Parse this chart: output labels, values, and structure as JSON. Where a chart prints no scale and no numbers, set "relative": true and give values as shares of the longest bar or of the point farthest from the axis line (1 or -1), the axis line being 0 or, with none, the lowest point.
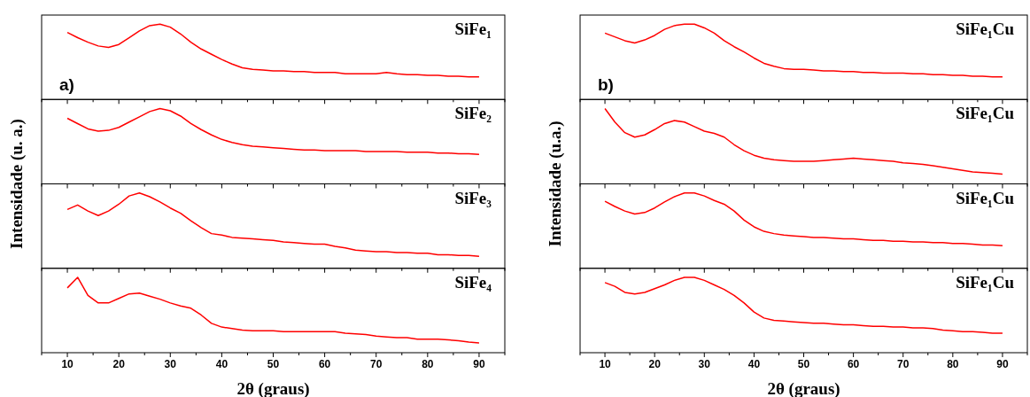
{
  "chart_data": [
    {
      "type": "line",
      "relative": true,
      "title": "SiFe₁",
      "ylabel": "Intensidade (u. a.)",
      "annotations": [
        "a)"
      ],
      "tick_labels": false,
      "xlim": [
        5,
        95
      ],
      "xticks": [
        {
          "value": 5,
          "label": null
        },
        10,
        {
          "value": 15,
          "label": null
        },
        20,
        {
          "value": 25,
          "label": null
        },
        30,
        {
          "value": 35,
          "label": null
        },
        40,
        {
          "value": 45,
          "label": null
        },
        50,
        {
          "value": 55,
          "label": null
        },
        60,
        {
          "value": 65,
          "label": null
        },
        70,
        {
          "value": 75,
          "label": null
        },
        80,
        {
          "value": 85,
          "label": null
        },
        90,
        {
          "value": 95,
          "label": null
        }
      ],
      "color": "#ff0000",
      "x": [
        10,
        12,
        14,
        16,
        18,
        20,
        22,
        24,
        26,
        28,
        30,
        32,
        34,
        36,
        38,
        40,
        42,
        44,
        46,
        48,
        50,
        52,
        54,
        56,
        58,
        60,
        62,
        64,
        66,
        68,
        70,
        72,
        74,
        76,
        78,
        80,
        82,
        84,
        86,
        88,
        90
      ],
      "values": [
        0.89,
        0.82,
        0.76,
        0.71,
        0.69,
        0.73,
        0.82,
        0.91,
        0.98,
        1,
        0.96,
        0.87,
        0.76,
        0.67,
        0.6,
        0.53,
        0.47,
        0.42,
        0.4,
        0.39,
        0.38,
        0.38,
        0.37,
        0.37,
        0.36,
        0.36,
        0.36,
        0.34,
        0.34,
        0.34,
        0.34,
        0.36,
        0.34,
        0.33,
        0.33,
        0.32,
        0.32,
        0.31,
        0.31,
        0.3,
        0.3
      ]
    },
    {
      "type": "line",
      "relative": true,
      "title": "SiFe₂",
      "tick_labels": false,
      "xlim": [
        5,
        95
      ],
      "xticks": [
        {
          "value": 5,
          "label": null
        },
        10,
        {
          "value": 15,
          "label": null
        },
        20,
        {
          "value": 25,
          "label": null
        },
        30,
        {
          "value": 35,
          "label": null
        },
        40,
        {
          "value": 45,
          "label": null
        },
        50,
        {
          "value": 55,
          "label": null
        },
        60,
        {
          "value": 65,
          "label": null
        },
        70,
        {
          "value": 75,
          "label": null
        },
        80,
        {
          "value": 85,
          "label": null
        },
        90,
        {
          "value": 95,
          "label": null
        }
      ],
      "color": "#ff0000",
      "x": [
        10,
        12,
        14,
        16,
        18,
        20,
        22,
        24,
        26,
        28,
        30,
        32,
        34,
        36,
        38,
        40,
        42,
        44,
        46,
        48,
        50,
        52,
        54,
        56,
        58,
        60,
        62,
        64,
        66,
        68,
        70,
        72,
        74,
        76,
        78,
        80,
        82,
        84,
        86,
        88,
        90
      ],
      "values": [
        0.87,
        0.8,
        0.73,
        0.7,
        0.71,
        0.75,
        0.82,
        0.89,
        0.96,
        1,
        0.97,
        0.9,
        0.8,
        0.72,
        0.65,
        0.59,
        0.55,
        0.52,
        0.5,
        0.49,
        0.48,
        0.47,
        0.46,
        0.45,
        0.45,
        0.44,
        0.44,
        0.44,
        0.44,
        0.43,
        0.43,
        0.43,
        0.43,
        0.42,
        0.42,
        0.42,
        0.41,
        0.41,
        0.4,
        0.4,
        0.39
      ]
    },
    {
      "type": "line",
      "relative": true,
      "title": "SiFe₃",
      "tick_labels": false,
      "xlim": [
        5,
        95
      ],
      "xticks": [
        {
          "value": 5,
          "label": null
        },
        10,
        {
          "value": 15,
          "label": null
        },
        20,
        {
          "value": 25,
          "label": null
        },
        30,
        {
          "value": 35,
          "label": null
        },
        40,
        {
          "value": 45,
          "label": null
        },
        50,
        {
          "value": 55,
          "label": null
        },
        60,
        {
          "value": 65,
          "label": null
        },
        70,
        {
          "value": 75,
          "label": null
        },
        80,
        {
          "value": 85,
          "label": null
        },
        90,
        {
          "value": 95,
          "label": null
        }
      ],
      "color": "#ff0000",
      "x": [
        10,
        12,
        14,
        16,
        18,
        20,
        22,
        24,
        26,
        28,
        30,
        32,
        34,
        36,
        38,
        40,
        42,
        44,
        46,
        48,
        50,
        52,
        54,
        56,
        58,
        60,
        62,
        64,
        66,
        68,
        70,
        72,
        74,
        76,
        78,
        80,
        82,
        84,
        86,
        88,
        90
      ],
      "values": [
        0.78,
        0.84,
        0.76,
        0.7,
        0.76,
        0.85,
        0.96,
        1,
        0.95,
        0.88,
        0.8,
        0.73,
        0.63,
        0.54,
        0.46,
        0.44,
        0.41,
        0.4,
        0.39,
        0.38,
        0.37,
        0.35,
        0.34,
        0.33,
        0.32,
        0.32,
        0.29,
        0.27,
        0.24,
        0.23,
        0.22,
        0.22,
        0.21,
        0.21,
        0.2,
        0.2,
        0.18,
        0.18,
        0.17,
        0.17,
        0.16
      ]
    },
    {
      "type": "line",
      "relative": true,
      "title": "SiFe₄",
      "xlabel": "2θ (graus)",
      "tick_labels": "x",
      "xlim": [
        5,
        95
      ],
      "xticks": [
        {
          "value": 5,
          "label": null
        },
        10,
        {
          "value": 15,
          "label": null
        },
        20,
        {
          "value": 25,
          "label": null
        },
        30,
        {
          "value": 35,
          "label": null
        },
        40,
        {
          "value": 45,
          "label": null
        },
        50,
        {
          "value": 55,
          "label": null
        },
        60,
        {
          "value": 65,
          "label": null
        },
        70,
        {
          "value": 75,
          "label": null
        },
        80,
        {
          "value": 85,
          "label": null
        },
        90,
        {
          "value": 95,
          "label": null
        }
      ],
      "color": "#ff0000",
      "x": [
        10,
        12,
        14,
        16,
        18,
        20,
        22,
        24,
        26,
        28,
        30,
        32,
        34,
        36,
        38,
        40,
        42,
        44,
        46,
        48,
        50,
        52,
        54,
        56,
        58,
        60,
        62,
        64,
        66,
        68,
        70,
        72,
        74,
        76,
        78,
        80,
        82,
        84,
        86,
        88,
        90
      ],
      "values": [
        0.86,
        1,
        0.76,
        0.66,
        0.66,
        0.72,
        0.78,
        0.79,
        0.75,
        0.71,
        0.66,
        0.62,
        0.59,
        0.5,
        0.39,
        0.34,
        0.32,
        0.3,
        0.29,
        0.29,
        0.29,
        0.28,
        0.28,
        0.28,
        0.28,
        0.28,
        0.28,
        0.26,
        0.25,
        0.24,
        0.22,
        0.21,
        0.2,
        0.2,
        0.18,
        0.18,
        0.18,
        0.17,
        0.16,
        0.14,
        0.13
      ]
    },
    {
      "type": "line",
      "relative": true,
      "title": "SiFe₁Cu",
      "ylabel": "Intensidade (u.a.)",
      "annotations": [
        "b)"
      ],
      "tick_labels": false,
      "xlim": [
        5,
        95
      ],
      "xticks": [
        {
          "value": 5,
          "label": null
        },
        10,
        {
          "value": 15,
          "label": null
        },
        20,
        {
          "value": 25,
          "label": null
        },
        30,
        {
          "value": 35,
          "label": null
        },
        40,
        {
          "value": 45,
          "label": null
        },
        50,
        {
          "value": 55,
          "label": null
        },
        60,
        {
          "value": 65,
          "label": null
        },
        70,
        {
          "value": 75,
          "label": null
        },
        80,
        {
          "value": 85,
          "label": null
        },
        90,
        {
          "value": 95,
          "label": null
        }
      ],
      "color": "#ff0000",
      "x": [
        10,
        12,
        14,
        16,
        18,
        20,
        22,
        24,
        26,
        28,
        30,
        32,
        34,
        36,
        38,
        40,
        42,
        44,
        46,
        48,
        50,
        52,
        54,
        56,
        58,
        60,
        62,
        64,
        66,
        68,
        70,
        72,
        74,
        76,
        78,
        80,
        82,
        84,
        86,
        88,
        90
      ],
      "values": [
        0.88,
        0.83,
        0.78,
        0.75,
        0.79,
        0.85,
        0.93,
        0.98,
        1,
        1,
        0.95,
        0.88,
        0.78,
        0.7,
        0.63,
        0.55,
        0.48,
        0.44,
        0.41,
        0.4,
        0.4,
        0.39,
        0.38,
        0.38,
        0.37,
        0.37,
        0.36,
        0.36,
        0.35,
        0.35,
        0.35,
        0.34,
        0.34,
        0.33,
        0.33,
        0.32,
        0.32,
        0.31,
        0.31,
        0.3,
        0.3
      ]
    },
    {
      "type": "line",
      "relative": true,
      "title": "SiFe₁Cu",
      "tick_labels": false,
      "xlim": [
        5,
        95
      ],
      "xticks": [
        {
          "value": 5,
          "label": null
        },
        10,
        {
          "value": 15,
          "label": null
        },
        20,
        {
          "value": 25,
          "label": null
        },
        30,
        {
          "value": 35,
          "label": null
        },
        40,
        {
          "value": 45,
          "label": null
        },
        50,
        {
          "value": 55,
          "label": null
        },
        60,
        {
          "value": 65,
          "label": null
        },
        70,
        {
          "value": 75,
          "label": null
        },
        80,
        {
          "value": 85,
          "label": null
        },
        90,
        {
          "value": 95,
          "label": null
        }
      ],
      "color": "#ff0000",
      "x": [
        10,
        12,
        14,
        16,
        18,
        20,
        22,
        24,
        26,
        28,
        30,
        32,
        34,
        36,
        38,
        40,
        42,
        44,
        46,
        48,
        50,
        52,
        54,
        56,
        58,
        60,
        62,
        64,
        66,
        68,
        70,
        72,
        74,
        76,
        78,
        80,
        82,
        84,
        86,
        88,
        90
      ],
      "values": [
        1,
        0.82,
        0.68,
        0.62,
        0.65,
        0.72,
        0.8,
        0.84,
        0.82,
        0.76,
        0.7,
        0.67,
        0.62,
        0.52,
        0.44,
        0.38,
        0.34,
        0.32,
        0.31,
        0.3,
        0.3,
        0.3,
        0.31,
        0.32,
        0.33,
        0.34,
        0.33,
        0.32,
        0.31,
        0.3,
        0.28,
        0.27,
        0.26,
        0.24,
        0.22,
        0.2,
        0.18,
        0.16,
        0.15,
        0.14,
        0.13
      ]
    },
    {
      "type": "line",
      "relative": true,
      "title": "SiFe₁Cu",
      "tick_labels": false,
      "xlim": [
        5,
        95
      ],
      "xticks": [
        {
          "value": 5,
          "label": null
        },
        10,
        {
          "value": 15,
          "label": null
        },
        20,
        {
          "value": 25,
          "label": null
        },
        30,
        {
          "value": 35,
          "label": null
        },
        40,
        {
          "value": 45,
          "label": null
        },
        50,
        {
          "value": 55,
          "label": null
        },
        60,
        {
          "value": 65,
          "label": null
        },
        70,
        {
          "value": 75,
          "label": null
        },
        80,
        {
          "value": 85,
          "label": null
        },
        90,
        {
          "value": 95,
          "label": null
        }
      ],
      "color": "#ff0000",
      "x": [
        10,
        12,
        14,
        16,
        18,
        20,
        22,
        24,
        26,
        28,
        30,
        32,
        34,
        36,
        38,
        40,
        42,
        44,
        46,
        48,
        50,
        52,
        54,
        56,
        58,
        60,
        62,
        64,
        66,
        68,
        70,
        72,
        74,
        76,
        78,
        80,
        82,
        84,
        86,
        88,
        90
      ],
      "values": [
        0.89,
        0.82,
        0.76,
        0.72,
        0.74,
        0.8,
        0.88,
        0.95,
        1,
        1,
        0.96,
        0.9,
        0.85,
        0.76,
        0.64,
        0.55,
        0.49,
        0.46,
        0.44,
        0.43,
        0.42,
        0.41,
        0.41,
        0.4,
        0.39,
        0.39,
        0.38,
        0.37,
        0.37,
        0.36,
        0.36,
        0.35,
        0.35,
        0.34,
        0.34,
        0.33,
        0.33,
        0.32,
        0.31,
        0.31,
        0.3
      ]
    },
    {
      "type": "line",
      "relative": true,
      "title": "SiFe₁Cu",
      "xlabel": "2θ (graus)",
      "tick_labels": "x",
      "xlim": [
        5,
        95
      ],
      "xticks": [
        {
          "value": 5,
          "label": null
        },
        10,
        {
          "value": 15,
          "label": null
        },
        20,
        {
          "value": 25,
          "label": null
        },
        30,
        {
          "value": 35,
          "label": null
        },
        40,
        {
          "value": 45,
          "label": null
        },
        50,
        {
          "value": 55,
          "label": null
        },
        60,
        {
          "value": 65,
          "label": null
        },
        70,
        {
          "value": 75,
          "label": null
        },
        80,
        {
          "value": 85,
          "label": null
        },
        90,
        {
          "value": 95,
          "label": null
        }
      ],
      "color": "#ff0000",
      "x": [
        10,
        12,
        14,
        16,
        18,
        20,
        22,
        24,
        26,
        28,
        30,
        32,
        34,
        36,
        38,
        40,
        42,
        44,
        46,
        48,
        50,
        52,
        54,
        56,
        58,
        60,
        62,
        64,
        66,
        68,
        70,
        72,
        74,
        76,
        78,
        80,
        82,
        84,
        86,
        88,
        90
      ],
      "values": [
        0.93,
        0.88,
        0.8,
        0.78,
        0.8,
        0.85,
        0.9,
        0.96,
        1,
        1,
        0.96,
        0.9,
        0.84,
        0.76,
        0.66,
        0.54,
        0.46,
        0.43,
        0.42,
        0.41,
        0.4,
        0.39,
        0.39,
        0.38,
        0.37,
        0.37,
        0.36,
        0.35,
        0.35,
        0.34,
        0.34,
        0.33,
        0.33,
        0.32,
        0.3,
        0.29,
        0.28,
        0.28,
        0.27,
        0.26,
        0.26
      ]
    }
  ]
}
